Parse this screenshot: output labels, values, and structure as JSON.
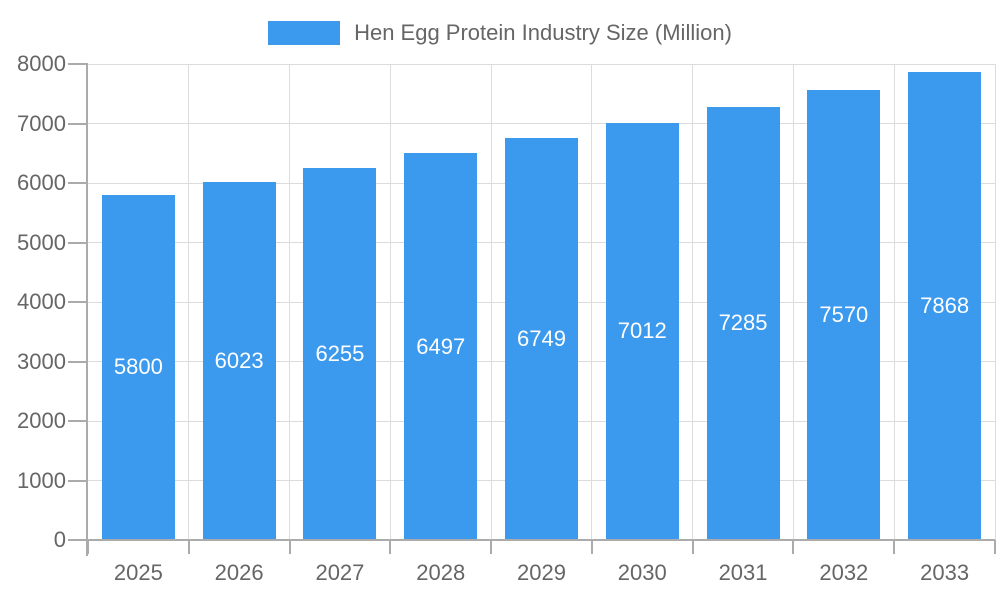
{
  "chart_data": {
    "type": "bar",
    "title": "Hen Egg Protein Industry Size (Million)",
    "categories": [
      "2025",
      "2026",
      "2027",
      "2028",
      "2029",
      "2030",
      "2031",
      "2032",
      "2033"
    ],
    "values": [
      5800,
      6023,
      6255,
      6497,
      6749,
      7012,
      7285,
      7570,
      7868
    ],
    "xlabel": "",
    "ylabel": "",
    "ylim": [
      0,
      8000
    ],
    "yticks": [
      0,
      1000,
      2000,
      3000,
      4000,
      5000,
      6000,
      7000,
      8000
    ],
    "grid": true,
    "legend_position": "top",
    "value_labels_inside_bars": true,
    "colors": {
      "bar": "#3B99EE",
      "axis_text": "#666666",
      "value_label": "#FFFFFF",
      "grid_line": "#DCDCDC",
      "axis_line": "#ABABAB",
      "background": "#FFFFFF"
    }
  }
}
